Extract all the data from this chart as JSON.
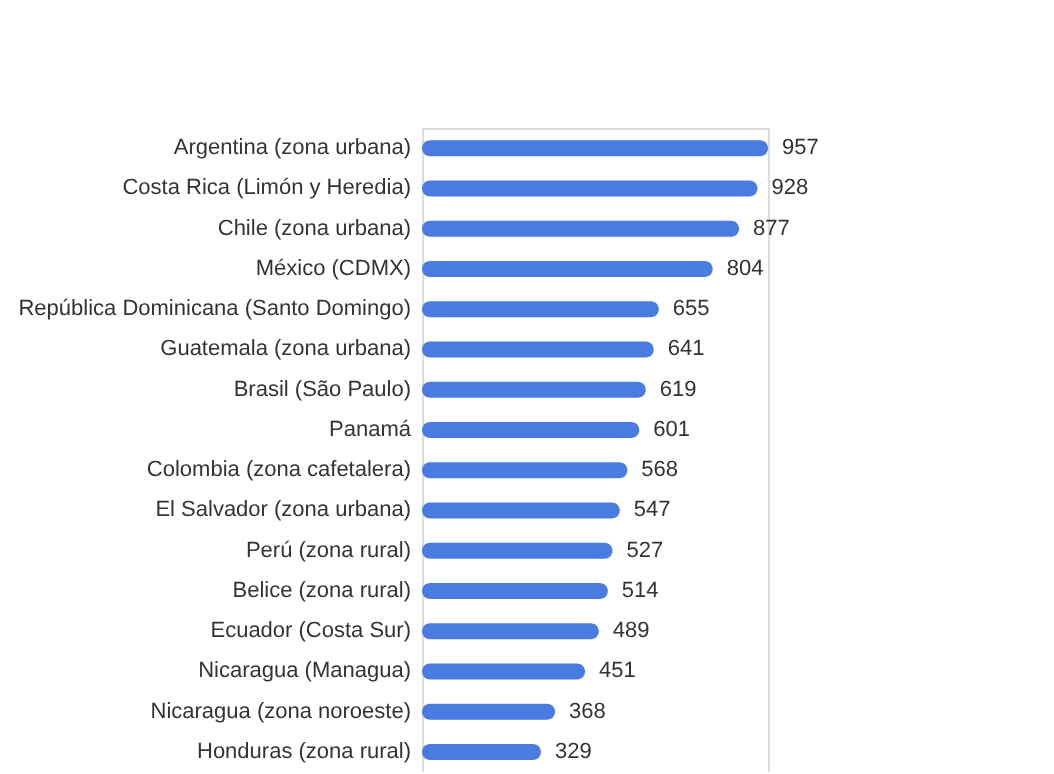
{
  "chart_data": {
    "type": "bar",
    "orientation": "horizontal",
    "data_labels": true,
    "color": "#4a7be0",
    "categories": [
      "Argentina (zona urbana)",
      "Costa Rica (Limón y Heredia)",
      "Chile (zona urbana)",
      "México (CDMX)",
      "República Dominicana (Santo Domingo)",
      "Guatemala (zona urbana)",
      "Brasil (São Paulo)",
      "Panamá",
      "Colombia (zona cafetalera)",
      "El Salvador (zona urbana)",
      "Perú (zona rural)",
      "Belice (zona rural)",
      "Ecuador (Costa Sur)",
      "Nicaragua (Managua)",
      "Nicaragua (zona noroeste)",
      "Honduras (zona rural)"
    ],
    "values": [
      957,
      928,
      877,
      804,
      655,
      641,
      619,
      601,
      568,
      547,
      527,
      514,
      489,
      451,
      368,
      329
    ]
  }
}
